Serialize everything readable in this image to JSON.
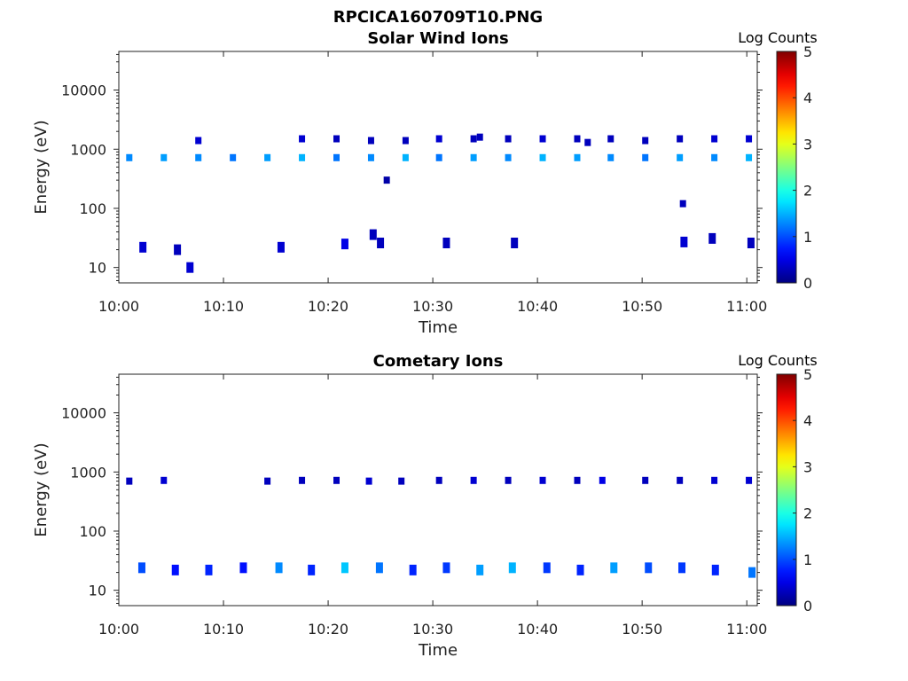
{
  "figure_title": "RPCICA160709T10.PNG",
  "chart_data": [
    {
      "type": "heatmap",
      "title": "Solar Wind Ions",
      "xlabel": "Time",
      "ylabel": "Energy (eV)",
      "x_ticks": [
        "10:00",
        "10:10",
        "10:20",
        "10:30",
        "10:40",
        "10:50",
        "11:00"
      ],
      "x_range_minutes": [
        0,
        61
      ],
      "y_ticks": [
        "10",
        "100",
        "1000",
        "10000"
      ],
      "y_scale": "log",
      "ylim": [
        5.5,
        45000
      ],
      "colorbar_label": "Log Counts",
      "colorbar_ticks": [
        "0",
        "1",
        "2",
        "3",
        "4",
        "5"
      ],
      "colorbar_range": [
        0,
        5
      ],
      "points": [
        {
          "t": 1.0,
          "e": 720,
          "v": 1.3
        },
        {
          "t": 4.3,
          "e": 720,
          "v": 1.4
        },
        {
          "t": 7.6,
          "e": 720,
          "v": 1.3
        },
        {
          "t": 10.9,
          "e": 720,
          "v": 1.2
        },
        {
          "t": 14.2,
          "e": 720,
          "v": 1.4
        },
        {
          "t": 17.5,
          "e": 720,
          "v": 1.5
        },
        {
          "t": 20.8,
          "e": 720,
          "v": 1.2
        },
        {
          "t": 24.1,
          "e": 720,
          "v": 1.3
        },
        {
          "t": 27.4,
          "e": 720,
          "v": 1.5
        },
        {
          "t": 30.6,
          "e": 720,
          "v": 1.2
        },
        {
          "t": 33.9,
          "e": 720,
          "v": 1.4
        },
        {
          "t": 37.2,
          "e": 720,
          "v": 1.3
        },
        {
          "t": 40.5,
          "e": 720,
          "v": 1.5
        },
        {
          "t": 43.8,
          "e": 720,
          "v": 1.4
        },
        {
          "t": 47.0,
          "e": 720,
          "v": 1.3
        },
        {
          "t": 50.3,
          "e": 720,
          "v": 1.2
        },
        {
          "t": 53.6,
          "e": 720,
          "v": 1.4
        },
        {
          "t": 56.9,
          "e": 720,
          "v": 1.3
        },
        {
          "t": 60.2,
          "e": 720,
          "v": 1.5
        },
        {
          "t": 7.6,
          "e": 1400,
          "v": 0.4
        },
        {
          "t": 17.5,
          "e": 1500,
          "v": 0.4
        },
        {
          "t": 20.8,
          "e": 1500,
          "v": 0.3
        },
        {
          "t": 24.1,
          "e": 1400,
          "v": 0.3
        },
        {
          "t": 27.4,
          "e": 1400,
          "v": 0.3
        },
        {
          "t": 30.6,
          "e": 1500,
          "v": 0.4
        },
        {
          "t": 33.9,
          "e": 1500,
          "v": 0.3
        },
        {
          "t": 34.5,
          "e": 1600,
          "v": 0.3
        },
        {
          "t": 37.2,
          "e": 1500,
          "v": 0.3
        },
        {
          "t": 40.5,
          "e": 1500,
          "v": 0.4
        },
        {
          "t": 43.8,
          "e": 1500,
          "v": 0.3
        },
        {
          "t": 44.8,
          "e": 1300,
          "v": 0.3
        },
        {
          "t": 47.0,
          "e": 1500,
          "v": 0.3
        },
        {
          "t": 50.3,
          "e": 1400,
          "v": 0.3
        },
        {
          "t": 53.6,
          "e": 1500,
          "v": 0.3
        },
        {
          "t": 56.9,
          "e": 1500,
          "v": 0.4
        },
        {
          "t": 60.2,
          "e": 1500,
          "v": 0.4
        },
        {
          "t": 25.6,
          "e": 300,
          "v": 0.2
        },
        {
          "t": 53.9,
          "e": 120,
          "v": 0.3
        },
        {
          "t": 2.3,
          "e": 22,
          "v": 0.4
        },
        {
          "t": 5.6,
          "e": 20,
          "v": 0.3
        },
        {
          "t": 6.8,
          "e": 10,
          "v": 0.4
        },
        {
          "t": 15.5,
          "e": 22,
          "v": 0.4
        },
        {
          "t": 21.6,
          "e": 25,
          "v": 0.5
        },
        {
          "t": 24.3,
          "e": 36,
          "v": 0.3
        },
        {
          "t": 25.0,
          "e": 26,
          "v": 0.3
        },
        {
          "t": 31.3,
          "e": 26,
          "v": 0.3
        },
        {
          "t": 37.8,
          "e": 26,
          "v": 0.3
        },
        {
          "t": 54.0,
          "e": 27,
          "v": 0.4
        },
        {
          "t": 56.7,
          "e": 31,
          "v": 0.3
        },
        {
          "t": 60.4,
          "e": 26,
          "v": 0.3
        }
      ]
    },
    {
      "type": "heatmap",
      "title": "Cometary Ions",
      "xlabel": "Time",
      "ylabel": "Energy (eV)",
      "x_ticks": [
        "10:00",
        "10:10",
        "10:20",
        "10:30",
        "10:40",
        "10:50",
        "11:00"
      ],
      "x_range_minutes": [
        0,
        61
      ],
      "y_ticks": [
        "10",
        "100",
        "1000",
        "10000"
      ],
      "y_scale": "log",
      "ylim": [
        5.5,
        45000
      ],
      "colorbar_label": "Log Counts",
      "colorbar_ticks": [
        "0",
        "1",
        "2",
        "3",
        "4",
        "5"
      ],
      "colorbar_range": [
        0,
        5
      ],
      "points": [
        {
          "t": 1.0,
          "e": 700,
          "v": 0.3
        },
        {
          "t": 4.3,
          "e": 720,
          "v": 0.4
        },
        {
          "t": 14.2,
          "e": 700,
          "v": 0.3
        },
        {
          "t": 17.5,
          "e": 720,
          "v": 0.3
        },
        {
          "t": 20.8,
          "e": 720,
          "v": 0.3
        },
        {
          "t": 23.9,
          "e": 700,
          "v": 0.4
        },
        {
          "t": 27.0,
          "e": 700,
          "v": 0.3
        },
        {
          "t": 30.6,
          "e": 720,
          "v": 0.3
        },
        {
          "t": 33.9,
          "e": 720,
          "v": 0.4
        },
        {
          "t": 37.2,
          "e": 720,
          "v": 0.3
        },
        {
          "t": 40.5,
          "e": 720,
          "v": 0.4
        },
        {
          "t": 43.8,
          "e": 720,
          "v": 0.3
        },
        {
          "t": 46.2,
          "e": 720,
          "v": 0.5
        },
        {
          "t": 50.3,
          "e": 720,
          "v": 0.3
        },
        {
          "t": 53.6,
          "e": 720,
          "v": 0.3
        },
        {
          "t": 56.9,
          "e": 720,
          "v": 0.4
        },
        {
          "t": 60.2,
          "e": 720,
          "v": 0.4
        },
        {
          "t": 2.2,
          "e": 24,
          "v": 1.0
        },
        {
          "t": 5.4,
          "e": 22,
          "v": 0.7
        },
        {
          "t": 8.6,
          "e": 22,
          "v": 0.8
        },
        {
          "t": 11.9,
          "e": 24,
          "v": 0.7
        },
        {
          "t": 15.3,
          "e": 24,
          "v": 1.3
        },
        {
          "t": 18.4,
          "e": 22,
          "v": 0.8
        },
        {
          "t": 21.6,
          "e": 24,
          "v": 1.6
        },
        {
          "t": 24.9,
          "e": 24,
          "v": 1.2
        },
        {
          "t": 28.1,
          "e": 22,
          "v": 0.8
        },
        {
          "t": 31.3,
          "e": 24,
          "v": 0.9
        },
        {
          "t": 34.5,
          "e": 22,
          "v": 1.4
        },
        {
          "t": 37.6,
          "e": 24,
          "v": 1.5
        },
        {
          "t": 40.9,
          "e": 24,
          "v": 0.9
        },
        {
          "t": 44.1,
          "e": 22,
          "v": 0.8
        },
        {
          "t": 47.3,
          "e": 24,
          "v": 1.4
        },
        {
          "t": 50.6,
          "e": 24,
          "v": 1.0
        },
        {
          "t": 53.8,
          "e": 24,
          "v": 0.9
        },
        {
          "t": 57.0,
          "e": 22,
          "v": 0.8
        },
        {
          "t": 60.5,
          "e": 20,
          "v": 1.2
        }
      ]
    }
  ]
}
